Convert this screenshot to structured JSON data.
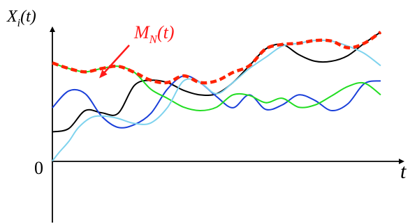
{
  "chart_data": {
    "type": "line",
    "title": "",
    "ylabel": {
      "var": "X",
      "sub": "i",
      "arg": "(t)"
    },
    "xlabel": "t",
    "origin_label": "0",
    "annotation": {
      "var": "M",
      "sub": "N",
      "arg": "(t)",
      "color": "#ff1a1a"
    },
    "xlim": [
      0,
      1
    ],
    "ylim": [
      -1.25,
      2.05
    ],
    "grid": false,
    "legend": "none",
    "series": [
      {
        "color": "#000000",
        "style": "solid",
        "x": [
          0.0,
          0.05,
          0.1,
          0.15,
          0.2,
          0.25,
          0.3,
          0.35,
          0.4,
          0.45,
          0.5,
          0.55,
          0.6,
          0.65,
          0.7,
          0.75,
          0.8,
          0.85,
          0.9,
          0.95,
          1.0
        ],
        "y": [
          0.12,
          0.18,
          0.5,
          0.46,
          0.45,
          0.95,
          1.04,
          1.0,
          0.86,
          0.78,
          0.8,
          1.0,
          1.3,
          1.6,
          1.68,
          1.5,
          1.38,
          1.38,
          1.48,
          1.7,
          1.9
        ]
      },
      {
        "color": "#1a3fd9",
        "style": "solid",
        "x": [
          0.0,
          0.05,
          0.1,
          0.15,
          0.2,
          0.25,
          0.3,
          0.35,
          0.4,
          0.45,
          0.5,
          0.55,
          0.6,
          0.65,
          0.7,
          0.75,
          0.8,
          0.85,
          0.9,
          0.95,
          1.0
        ],
        "y": [
          0.55,
          0.85,
          0.8,
          0.4,
          0.2,
          0.25,
          0.45,
          0.88,
          1.12,
          1.0,
          0.75,
          0.55,
          0.78,
          0.52,
          0.6,
          0.78,
          0.68,
          0.5,
          0.62,
          0.98,
          1.03
        ]
      },
      {
        "color": "#22dd22",
        "style": "solid",
        "x": [
          0.0,
          0.05,
          0.1,
          0.15,
          0.2,
          0.25,
          0.3,
          0.35,
          0.4,
          0.45,
          0.5,
          0.55,
          0.6,
          0.65,
          0.7,
          0.75,
          0.8,
          0.85,
          0.9,
          0.95,
          1.0
        ],
        "y": [
          1.35,
          1.25,
          1.19,
          1.25,
          1.29,
          1.18,
          0.88,
          0.72,
          0.56,
          0.5,
          0.56,
          0.78,
          0.77,
          0.64,
          0.72,
          0.56,
          0.6,
          0.76,
          0.93,
          0.99,
          0.78
        ]
      },
      {
        "color": "#7fd3ee",
        "style": "solid",
        "x": [
          0.0,
          0.02,
          0.05,
          0.08,
          0.12,
          0.16,
          0.2,
          0.25,
          0.3,
          0.35,
          0.4,
          0.45,
          0.5,
          0.55,
          0.6,
          0.65,
          0.7,
          0.75,
          0.8,
          0.85,
          0.9,
          0.95,
          1.0
        ],
        "y": [
          -0.4,
          -0.25,
          -0.05,
          0.2,
          0.38,
          0.4,
          0.36,
          0.27,
          0.28,
          0.55,
          1.03,
          1.0,
          0.8,
          1.0,
          1.25,
          1.45,
          1.65,
          1.7,
          1.75,
          1.74,
          1.65,
          1.52,
          1.3
        ]
      },
      {
        "color": "#ff2200",
        "style": "dashed",
        "x": [
          0.0,
          0.05,
          0.1,
          0.15,
          0.2,
          0.25,
          0.3,
          0.35,
          0.4,
          0.45,
          0.5,
          0.55,
          0.6,
          0.65,
          0.7,
          0.75,
          0.8,
          0.85,
          0.9,
          0.95,
          1.0
        ],
        "y": [
          1.35,
          1.25,
          1.19,
          1.25,
          1.29,
          1.18,
          1.04,
          1.0,
          1.12,
          1.0,
          1.03,
          1.18,
          1.3,
          1.6,
          1.68,
          1.7,
          1.75,
          1.74,
          1.62,
          1.7,
          1.9
        ]
      }
    ]
  }
}
